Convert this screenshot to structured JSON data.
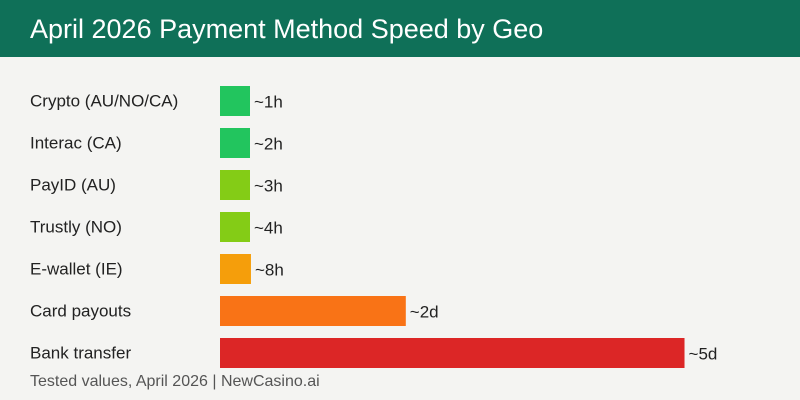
{
  "header": {
    "title": "April 2026 Payment Method Speed by Geo"
  },
  "footer": {
    "text": "Tested values, April 2026 | NewCasino.ai"
  },
  "colors": {
    "header_bg": "#0f7058",
    "background": "#f4f4f2"
  },
  "chart_data": {
    "type": "bar",
    "orientation": "horizontal",
    "title": "April 2026 Payment Method Speed by Geo",
    "xlabel": "",
    "ylabel": "",
    "unit": "hours",
    "grid": false,
    "legend": "none",
    "xlim": [
      0,
      124
    ],
    "categories": [
      "Crypto (AU/NO/CA)",
      "Interac (CA)",
      "PayID (AU)",
      "Trustly (NO)",
      "E-wallet (IE)",
      "Card payouts",
      "Bank transfer"
    ],
    "values": [
      1,
      2,
      3,
      4,
      8,
      48,
      120
    ],
    "data_labels": [
      "~1h",
      "~2h",
      "~3h",
      "~4h",
      "~8h",
      "~2d",
      "~5d"
    ],
    "bar_colors": [
      "#22c55e",
      "#22c55e",
      "#84cc16",
      "#84cc16",
      "#f59e0b",
      "#f97316",
      "#dc2626"
    ]
  }
}
